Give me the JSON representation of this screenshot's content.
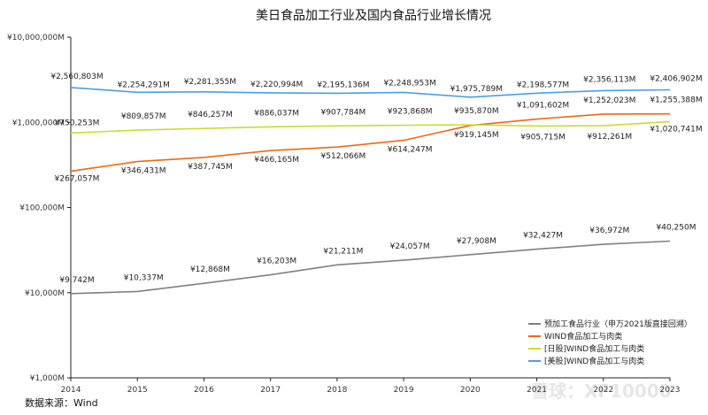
{
  "chart_data": {
    "type": "line",
    "title": "美日食品加工行业及国内食品行业增长情况",
    "x": [
      "2014",
      "2015",
      "2016",
      "2017",
      "2018",
      "2019",
      "2020",
      "2021",
      "2022",
      "2023"
    ],
    "yscale": "log",
    "ylim": [
      1000,
      10000000
    ],
    "yticks": [
      1000,
      10000,
      100000,
      1000000,
      10000000
    ],
    "ytick_labels": [
      "¥1,000M",
      "¥10,000M",
      "¥100,000M",
      "¥1,000,000M",
      "¥10,000,000M"
    ],
    "grid": false,
    "legend_position": "bottom-right",
    "series": [
      {
        "name": "预加工食品行业（申万2021版直接回溯）",
        "color": "#808080",
        "values": [
          9742,
          10337,
          12868,
          16203,
          21211,
          24057,
          27908,
          32427,
          36972,
          40250
        ],
        "labels": [
          "¥9,742M",
          "¥10,337M",
          "¥12,868M",
          "¥16,203M",
          "¥21,211M",
          "¥24,057M",
          "¥27,908M",
          "¥32,427M",
          "¥36,972M",
          "¥40,250M"
        ]
      },
      {
        "name": "WIND食品加工与肉类",
        "color": "#ea6a14",
        "values": [
          267057,
          346431,
          387745,
          466165,
          512066,
          614247,
          919145,
          1091602,
          1252023,
          1255388
        ],
        "labels": [
          "¥267,057M",
          "¥346,431M",
          "¥387,745M",
          "¥466,165M",
          "¥512,066M",
          "¥614,247M",
          "¥919,145M",
          "¥1,091,602M",
          "¥1,252,023M",
          "¥1,255,388M"
        ]
      },
      {
        "name": "[日股]WIND食品加工与肉类",
        "color": "#c8dc34",
        "values": [
          750253,
          809857,
          846257,
          886037,
          907784,
          923868,
          935870,
          905715,
          912261,
          1020741
        ],
        "labels": [
          "¥750,253M",
          "¥809,857M",
          "¥846,257M",
          "¥886,037M",
          "¥907,784M",
          "¥923,868M",
          "¥935,870M",
          "¥905,715M",
          "¥912,261M",
          "¥1,020,741M"
        ]
      },
      {
        "name": "[美股]WIND食品加工与肉类",
        "color": "#4a9ee8",
        "values": [
          2560803,
          2254291,
          2281355,
          2220994,
          2195136,
          2248953,
          1975789,
          2198577,
          2356113,
          2406902
        ],
        "labels": [
          "¥2,560,803M",
          "¥2,254,291M",
          "¥2,281,355M",
          "¥2,220,994M",
          "¥2,195,136M",
          "¥2,248,953M",
          "¥1,975,789M",
          "¥2,198,577M",
          "¥2,356,113M",
          "¥2,406,902M"
        ]
      }
    ]
  },
  "footer": {
    "source": "数据来源：Wind"
  },
  "watermark": "雪球：XF10000"
}
